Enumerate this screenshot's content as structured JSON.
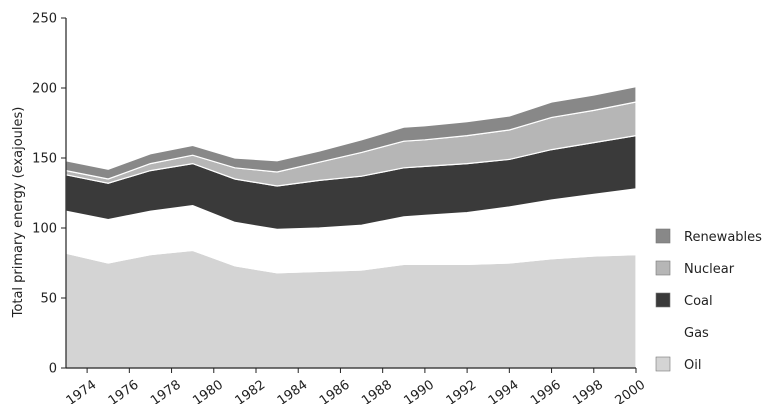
{
  "chart_data": {
    "type": "area",
    "stacked": true,
    "title": "",
    "xlabel": "",
    "ylabel": "Total primary energy (exajoules)",
    "ylim": [
      0,
      250
    ],
    "yticks": [
      "0",
      "50",
      "100",
      "150",
      "200",
      "250"
    ],
    "xlim": [
      1973,
      2000
    ],
    "xticks": [
      "1974",
      "1976",
      "1978",
      "1980",
      "1982",
      "1984",
      "1986",
      "1988",
      "1990",
      "1992",
      "1994",
      "1996",
      "1998",
      "2000"
    ],
    "grid": false,
    "legend_position": "right",
    "x": [
      1973,
      1975,
      1977,
      1979,
      1981,
      1983,
      1985,
      1987,
      1989,
      1990,
      1992,
      1994,
      1996,
      1998,
      2000
    ],
    "series": [
      {
        "name": "Oil",
        "color": "#d4d4d4",
        "values": [
          82,
          75,
          81,
          84,
          73,
          68,
          69,
          70,
          74,
          74,
          74,
          75,
          78,
          80,
          81
        ]
      },
      {
        "name": "Gas",
        "color": "#ffffff",
        "values": [
          30,
          31,
          31,
          32,
          31,
          31,
          31,
          32,
          34,
          35,
          37,
          40,
          42,
          44,
          47
        ]
      },
      {
        "name": "Coal",
        "color": "#3a3a3a",
        "values": [
          26,
          26,
          29,
          30,
          31,
          31,
          34,
          35,
          35,
          35,
          35,
          34,
          36,
          37,
          38
        ]
      },
      {
        "name": "Nuclear",
        "color": "#b6b6b6",
        "values": [
          3,
          3,
          5,
          6,
          8,
          10,
          13,
          17,
          19,
          19,
          20,
          21,
          23,
          23,
          24
        ]
      },
      {
        "name": "Renewables",
        "color": "#888888",
        "values": [
          7,
          7,
          7,
          7,
          7,
          8,
          8,
          9,
          10,
          10,
          10,
          10,
          11,
          11,
          11
        ]
      }
    ]
  }
}
